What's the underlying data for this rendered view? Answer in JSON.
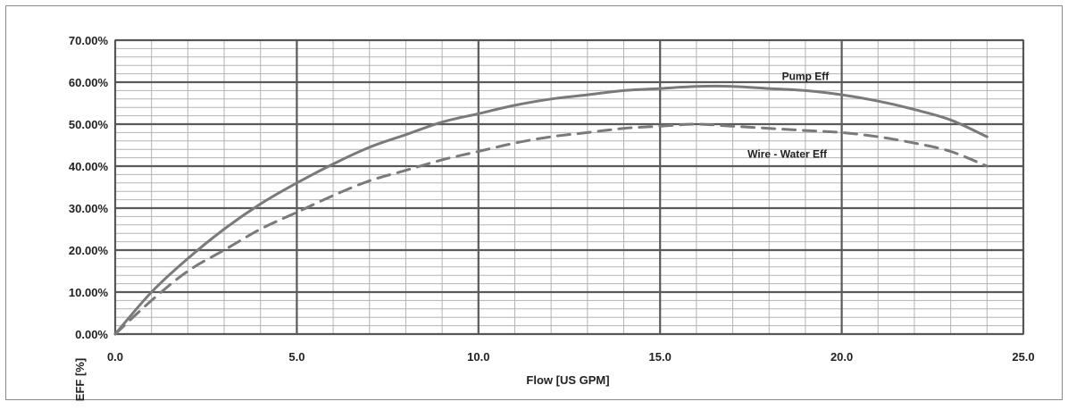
{
  "chart_data": {
    "type": "line",
    "title": "",
    "xlabel": "Flow [US GPM]",
    "ylabel": "EFF [%]",
    "xlim": [
      0,
      25
    ],
    "ylim": [
      0,
      70
    ],
    "x_ticks": [
      "0.0",
      "5.0",
      "10.0",
      "15.0",
      "20.0",
      "25.0"
    ],
    "y_ticks": [
      "0.00%",
      "10.00%",
      "20.00%",
      "30.00%",
      "40.00%",
      "50.00%",
      "60.00%",
      "70.00%"
    ],
    "grid": true,
    "series": [
      {
        "name": "Pump Eff",
        "style": "solid",
        "x": [
          0,
          1,
          2,
          3,
          4,
          5,
          6,
          7,
          8,
          9,
          10,
          11,
          12,
          13,
          14,
          15,
          16,
          17,
          18,
          19,
          20,
          21,
          22,
          23,
          24
        ],
        "y": [
          0,
          10,
          18,
          25,
          31,
          36,
          40.5,
          44.5,
          47.5,
          50.5,
          52.5,
          54.5,
          56,
          57,
          58,
          58.5,
          59,
          59,
          58.5,
          58,
          57,
          55.5,
          53.5,
          51,
          47
        ]
      },
      {
        "name": "Wire - Water Eff",
        "style": "dashed",
        "x": [
          0,
          1,
          2,
          3,
          4,
          5,
          6,
          7,
          8,
          9,
          10,
          11,
          12,
          13,
          14,
          15,
          16,
          17,
          18,
          19,
          20,
          21,
          22,
          23,
          24
        ],
        "y": [
          0,
          8,
          15,
          20,
          25,
          29,
          33,
          36.5,
          39,
          41.5,
          43.5,
          45.5,
          47,
          48,
          49,
          49.5,
          50,
          49.5,
          49,
          48.5,
          48,
          47,
          45.5,
          43.5,
          40
        ]
      }
    ],
    "annotations": [
      {
        "text": "Pump Eff",
        "x": 19.0,
        "y": 60.5
      },
      {
        "text": "Wire - Water Eff",
        "x": 18.5,
        "y": 42
      }
    ],
    "colors": {
      "series": "#7a7a7a",
      "major_grid": "#5a5a5a",
      "minor_grid": "#b3b3b3",
      "frame": "#555555"
    }
  }
}
